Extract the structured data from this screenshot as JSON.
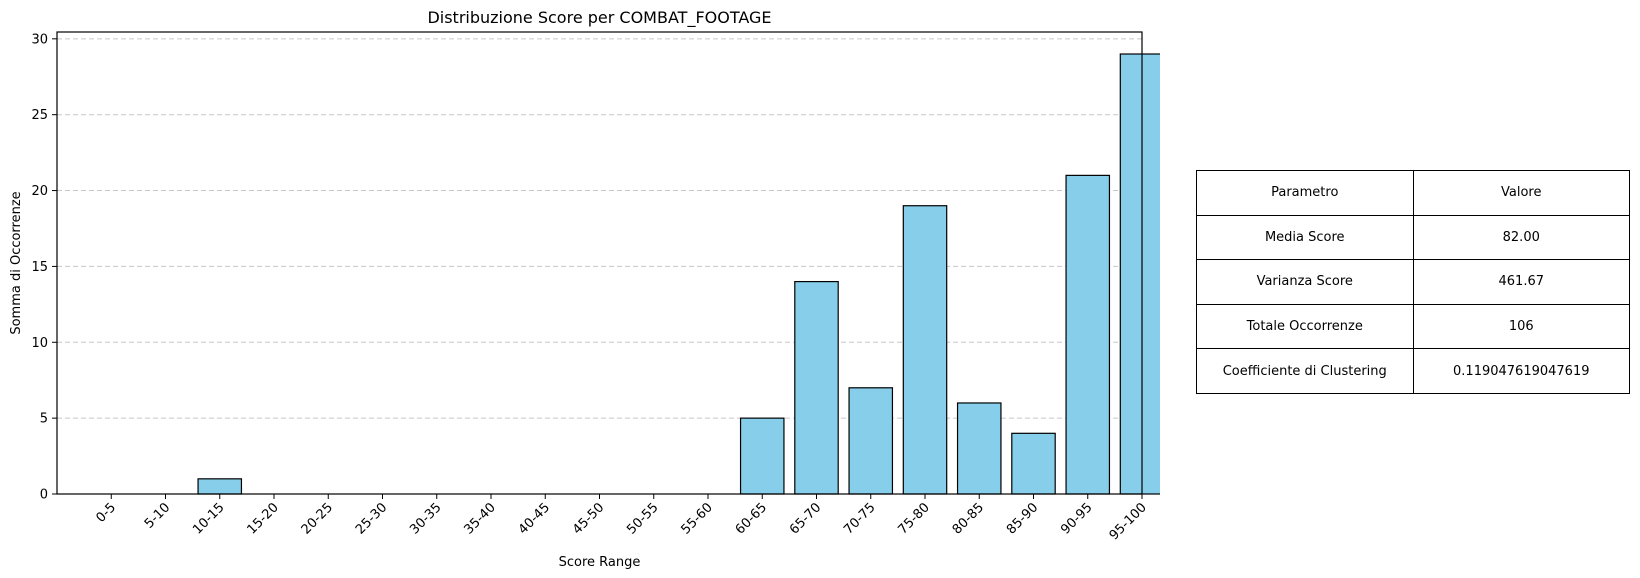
{
  "chart_data": {
    "type": "bar",
    "title": "Distribuzione Score per COMBAT_FOOTAGE",
    "xlabel": "Score Range",
    "ylabel": "Somma di Occorrenze",
    "categories": [
      "0-5",
      "5-10",
      "10-15",
      "15-20",
      "20-25",
      "25-30",
      "30-35",
      "35-40",
      "40-45",
      "45-50",
      "50-55",
      "55-60",
      "60-65",
      "65-70",
      "70-75",
      "75-80",
      "80-85",
      "85-90",
      "90-95",
      "95-100"
    ],
    "values": [
      0,
      0,
      1,
      0,
      0,
      0,
      0,
      0,
      0,
      0,
      0,
      0,
      5,
      14,
      7,
      19,
      6,
      4,
      21,
      29
    ],
    "ylim": [
      0,
      30.45
    ],
    "yticks": [
      0,
      5,
      10,
      15,
      20,
      25,
      30
    ],
    "grid": "y-dashed",
    "bar_color": "#87CEEB",
    "bar_edge_color": "#000000",
    "grid_color": "#c8c8c8"
  },
  "table": {
    "header": [
      "Parametro",
      "Valore"
    ],
    "rows": [
      [
        "Media Score",
        "82.00"
      ],
      [
        "Varianza Score",
        "461.67"
      ],
      [
        "Totale Occorrenze",
        "106"
      ],
      [
        "Coefficiente di Clustering",
        "0.119047619047619"
      ]
    ]
  }
}
